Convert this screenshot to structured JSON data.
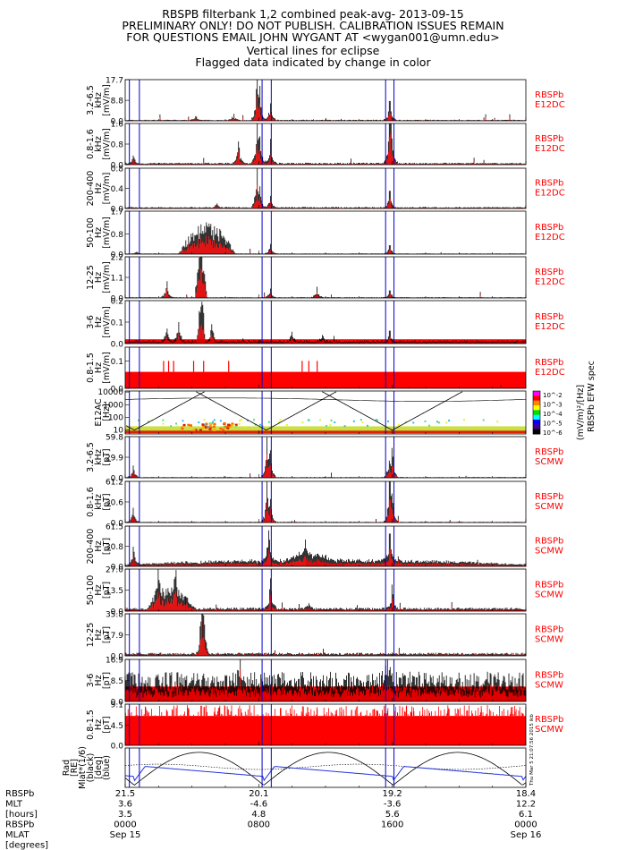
{
  "header": [
    "RBSPB filterbank 1,2 combined peak-avg- 2013-09-15",
    "PRELIMINARY ONLY! DO NOT PUBLISH. CALIBRATION ISSUES REMAIN",
    "FOR QUESTIONS EMAIL JOHN WYGANT AT <wygan001@umn.edu>",
    "Vertical lines for eclipse",
    "Flagged data indicated by change in color"
  ],
  "colors": {
    "peak": "#000000",
    "avg": "#ff0000",
    "eclipse": "#0000cc",
    "label_red": "#ff0000"
  },
  "eclipse_lines_hours": [
    0.25,
    0.85,
    8.2,
    8.75,
    15.6,
    16.1
  ],
  "chart_data": {
    "type": "line",
    "x_range_hours": [
      0,
      24
    ],
    "panels": [
      {
        "id": "e1",
        "ylabel": [
          "3.2-6.5",
          "kHz",
          "[mV/m]"
        ],
        "ticks": [
          "17.7",
          "8.8",
          "0.0"
        ],
        "ymax": 17.7,
        "right": [
          "RBSPb",
          "E12DC"
        ],
        "base": 0.3,
        "events": [
          [
            7.9,
            17.5
          ],
          [
            8.05,
            15.0
          ],
          [
            8.7,
            7.5
          ],
          [
            15.85,
            8.5
          ],
          [
            6.5,
            3.0
          ],
          [
            4.2,
            2.0
          ]
        ]
      },
      {
        "id": "e2",
        "ylabel": [
          "0.8-1.6",
          "kHz",
          "[mV/m]"
        ],
        "ticks": [
          "1.6",
          "0.8",
          "0.0"
        ],
        "ymax": 1.6,
        "right": [
          "RBSPb",
          "E12DC"
        ],
        "base": 0.05,
        "events": [
          [
            7.9,
            1.45
          ],
          [
            8.05,
            1.1
          ],
          [
            8.7,
            1.0
          ],
          [
            15.85,
            1.55
          ],
          [
            15.95,
            1.2
          ],
          [
            0.5,
            0.35
          ],
          [
            6.8,
            0.9
          ]
        ]
      },
      {
        "id": "e3",
        "ylabel": [
          "200-400",
          "Hz",
          "[mV/m]"
        ],
        "ticks": [
          "0.8",
          "0.4",
          "0.0"
        ],
        "ymax": 0.8,
        "right": [
          "RBSPb",
          "E12DC"
        ],
        "base": 0.02,
        "events": [
          [
            7.9,
            0.75
          ],
          [
            8.05,
            0.35
          ],
          [
            8.7,
            0.25
          ],
          [
            15.85,
            0.35
          ],
          [
            5.5,
            0.1
          ]
        ]
      },
      {
        "id": "e4",
        "ylabel": [
          "50-100",
          "Hz",
          "[mV/m]"
        ],
        "ticks": [
          "1.7",
          "0.8",
          "0.0"
        ],
        "ymax": 1.7,
        "right": [
          "RBSPb",
          "E12DC"
        ],
        "base": 0.02,
        "hump": [
          [
            3.2,
            6.6,
            1.0
          ]
        ],
        "events": [
          [
            8.7,
            0.4
          ],
          [
            15.85,
            0.35
          ],
          [
            0.7,
            0.1
          ]
        ]
      },
      {
        "id": "e5",
        "ylabel": [
          "12-25",
          "Hz",
          "[mV/m]"
        ],
        "ticks": [
          "2.2",
          "1.1",
          "0.0"
        ],
        "ymax": 2.2,
        "right": [
          "RBSPb",
          "E12DC"
        ],
        "base": 0.03,
        "hump": [
          [
            4.2,
            4.9,
            1.6
          ]
        ],
        "events": [
          [
            4.55,
            2.1
          ],
          [
            2.5,
            0.9
          ],
          [
            8.7,
            0.5
          ],
          [
            11.5,
            0.6
          ],
          [
            15.85,
            0.4
          ]
        ]
      },
      {
        "id": "e6",
        "ylabel": [
          "3-6",
          "Hz",
          "[mV/m]"
        ],
        "ticks": [
          "0.2",
          "0.1",
          "0.0"
        ],
        "ymax": 0.2,
        "right": [
          "RBSPb",
          "E12DC"
        ],
        "base": 0.01,
        "floor": 0.02,
        "hump": [
          [
            4.3,
            4.8,
            0.17
          ]
        ],
        "events": [
          [
            2.5,
            0.07
          ],
          [
            3.2,
            0.1
          ],
          [
            5.2,
            0.09
          ],
          [
            10.0,
            0.05
          ],
          [
            11.8,
            0.04
          ],
          [
            15.85,
            0.06
          ]
        ]
      },
      {
        "id": "e7",
        "ylabel": [
          "0.8-1.5",
          "Hz",
          "[mV/m]"
        ],
        "ticks": [
          "0.1",
          "0.0"
        ],
        "ymax": 0.15,
        "right": [
          "RBSPb",
          "E12DC"
        ],
        "base": 0.0,
        "floor": 0.06,
        "spikes": [
          [
            2.3,
            0.1
          ],
          [
            2.6,
            0.1
          ],
          [
            2.9,
            0.1
          ],
          [
            4.1,
            0.1
          ],
          [
            4.7,
            0.1
          ],
          [
            6.2,
            0.1
          ],
          [
            10.6,
            0.1
          ],
          [
            11.0,
            0.1
          ],
          [
            11.5,
            0.1
          ]
        ]
      },
      {
        "id": "spec",
        "kind": "spectrogram",
        "ylabel": [
          "E12AC",
          "[Hz]"
        ],
        "ticks": [
          "10000",
          "1000",
          "100",
          "10"
        ],
        "colorbar_ticks": [
          "10^-2",
          "10^-3",
          "10^-4",
          "10^-5",
          "10^-6"
        ],
        "colorbar_label": "(mV/m)²/[Hz]",
        "colorbar_title": "RBSPb EFW spec"
      },
      {
        "id": "b1",
        "ylabel": [
          "3.2-6.5",
          "kHz",
          "[pT]"
        ],
        "ticks": [
          "59.8",
          "29.9",
          "0.0"
        ],
        "ymax": 59.8,
        "right": [
          "RBSPb",
          "SCMW"
        ],
        "base": 0.8,
        "events": [
          [
            0.5,
            18.0
          ],
          [
            8.5,
            55.0
          ],
          [
            8.7,
            40.0
          ],
          [
            16.0,
            40.0
          ],
          [
            15.8,
            25.0
          ]
        ]
      },
      {
        "id": "b2",
        "ylabel": [
          "0.8-1.6",
          "kHz",
          "[pT]"
        ],
        "ticks": [
          "61.2",
          "30.6",
          "0.0"
        ],
        "ymax": 61.2,
        "right": [
          "RBSPb",
          "SCMW"
        ],
        "base": 0.8,
        "events": [
          [
            0.5,
            22.0
          ],
          [
            8.5,
            58.0
          ],
          [
            8.7,
            35.0
          ],
          [
            15.85,
            58.0
          ],
          [
            16.0,
            40.0
          ]
        ]
      },
      {
        "id": "b3",
        "ylabel": [
          "200-400",
          "Hz",
          "[pT]"
        ],
        "ticks": [
          "61.5",
          "30.8",
          "0.0"
        ],
        "ymax": 61.5,
        "right": [
          "RBSPb",
          "SCMW"
        ],
        "base": 2.5,
        "hump": [
          [
            0.0,
            24.0,
            7.0
          ],
          [
            9.5,
            12.5,
            9.0
          ]
        ],
        "events": [
          [
            0.5,
            30.0
          ],
          [
            8.6,
            55.0
          ],
          [
            15.85,
            50.0
          ],
          [
            10.8,
            28.0
          ]
        ]
      },
      {
        "id": "b4",
        "ylabel": [
          "50-100",
          "Hz",
          "[pT]"
        ],
        "ticks": [
          "27.0",
          "13.5",
          "0.0"
        ],
        "ymax": 27.0,
        "right": [
          "RBSPb",
          "SCMW"
        ],
        "base": 1.5,
        "hump": [
          [
            1.3,
            4.2,
            11.0
          ]
        ],
        "events": [
          [
            2.0,
            25.0
          ],
          [
            3.0,
            22.0
          ],
          [
            8.7,
            21.0
          ],
          [
            16.0,
            17.0
          ],
          [
            11.0,
            5.0
          ]
        ]
      },
      {
        "id": "b5",
        "ylabel": [
          "12-25",
          "Hz",
          "[pT]"
        ],
        "ticks": [
          "35.8",
          "17.9",
          "0.0"
        ],
        "ymax": 35.8,
        "right": [
          "RBSPb",
          "SCMW"
        ],
        "base": 1.8,
        "hump": [
          [
            4.4,
            4.9,
            14.0
          ]
        ],
        "events": [
          [
            4.6,
            34.0
          ],
          [
            4.7,
            22.0
          ]
        ]
      },
      {
        "id": "b6",
        "ylabel": [
          "3-6",
          "Hz",
          "[pT]"
        ],
        "ticks": [
          "16.9",
          "8.5",
          "0.0"
        ],
        "ymax": 16.9,
        "right": [
          "RBSPb",
          "SCMW"
        ],
        "base": 8.0,
        "floor": 6.0,
        "events": [
          [
            6.9,
            14.0
          ],
          [
            15.7,
            13.5
          ]
        ]
      },
      {
        "id": "b7",
        "ylabel": [
          "0.8-1.5",
          "Hz",
          "[pT]"
        ],
        "ticks": [
          "9.1",
          "4.5",
          "0.0"
        ],
        "ymax": 9.1,
        "right": [
          "RBSPb",
          "SCMW"
        ],
        "base": 0.0,
        "floor": 6.5,
        "dense_spikes": true
      },
      {
        "id": "orbit",
        "kind": "orbit",
        "ylabel": [
          "Rad",
          "[RE]",
          "Mlat*(1/6)",
          "(black)",
          "[deg]",
          "(blue)"
        ],
        "ticks": [
          "4",
          "2",
          "0",
          "-2",
          "-4"
        ],
        "ymin": -4.5,
        "ymax": 4.5
      }
    ],
    "xaxis": {
      "row_labels": [
        "RBSPb",
        "MLT",
        "[hours]",
        "RBSPb",
        "MLAT",
        "[degrees]"
      ],
      "ticks": [
        {
          "h": 0,
          "rows": [
            "21.5",
            "3.6",
            "3.5",
            "0000",
            "Sep 15"
          ]
        },
        {
          "h": 8,
          "rows": [
            "20.1",
            "-4.6",
            "4.8",
            "0800",
            ""
          ]
        },
        {
          "h": 16,
          "rows": [
            "19.2",
            "-3.6",
            "5.6",
            "1600",
            ""
          ]
        },
        {
          "h": 24,
          "rows": [
            "18.4",
            "12.2",
            "6.1",
            "0000",
            "Sep 16"
          ]
        }
      ]
    },
    "stamp": "Thu Mar  5 21:07:56 2015 ikb"
  }
}
